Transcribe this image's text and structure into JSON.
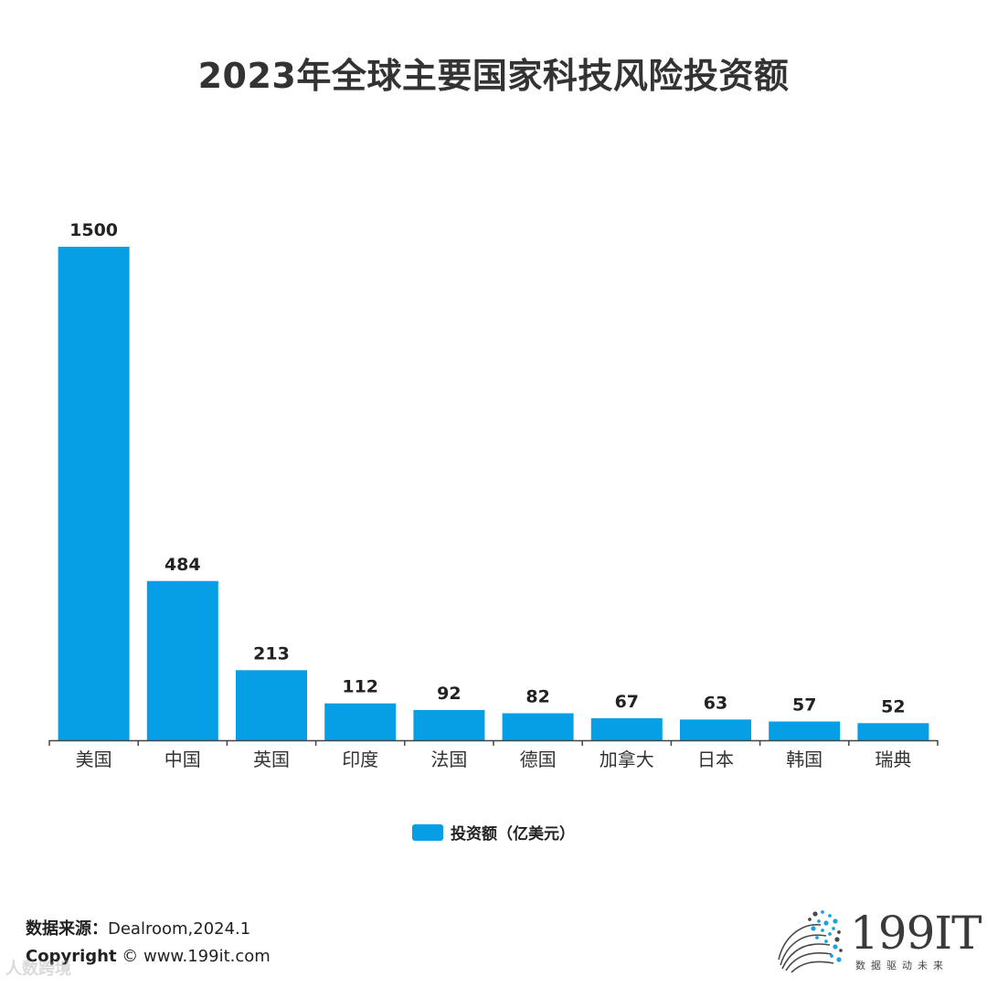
{
  "chart_data": {
    "type": "bar",
    "title": "2023年全球主要国家科技风险投资额",
    "categories": [
      "美国",
      "中国",
      "英国",
      "印度",
      "法国",
      "德国",
      "加拿大",
      "日本",
      "韩国",
      "瑞典"
    ],
    "series": [
      {
        "name": "投资额（亿美元）",
        "values": [
          1500,
          484,
          213,
          112,
          92,
          82,
          67,
          63,
          57,
          52
        ],
        "color": "#069fe6"
      }
    ],
    "xlabel": "",
    "ylabel": "",
    "ylim": [
      0,
      1500
    ],
    "grid": false,
    "legend_position": "bottom-center"
  },
  "footer": {
    "source_label": "数据来源：",
    "source_value": "Dealroom,2024.1",
    "copyright_label": "Copyright",
    "copyright_value": " ©  www.199it.com",
    "watermark": "人数跨境"
  },
  "brand": {
    "name": "199IT",
    "tagline": "数据驱动未来",
    "accent_color": "#1aa3e0"
  }
}
